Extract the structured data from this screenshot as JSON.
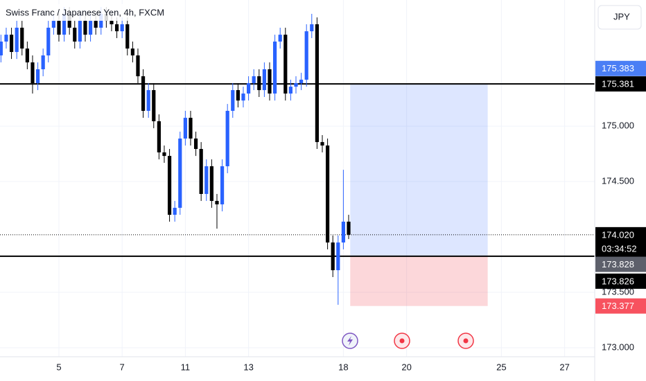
{
  "chart_data": {
    "type": "candlestick",
    "title": "Swiss Franc / Japanese Yen, 4h, FXCM",
    "currency": "JPY",
    "x": [
      1,
      2,
      3,
      4,
      5,
      6,
      7,
      8,
      9,
      10,
      11,
      12,
      13,
      14,
      15,
      16,
      17,
      18,
      19,
      20,
      21,
      22,
      23,
      24,
      25,
      26,
      27,
      28,
      29,
      30,
      31,
      32,
      33,
      34,
      35,
      36,
      37,
      38,
      39,
      40,
      41,
      42,
      43,
      44,
      45,
      46,
      47,
      48,
      49,
      50,
      51,
      52,
      53,
      54,
      55,
      56,
      57,
      58,
      59,
      60,
      61,
      62,
      63,
      64,
      65,
      66,
      67
    ],
    "open": [
      175.638,
      175.763,
      175.825,
      175.669,
      175.888,
      175.7,
      175.575,
      175.388,
      175.513,
      175.638,
      175.888,
      175.95,
      175.825,
      176.013,
      175.888,
      175.763,
      175.95,
      175.825,
      175.95,
      175.888,
      176.013,
      175.95,
      175.919,
      175.856,
      175.919,
      175.7,
      175.638,
      175.45,
      175.138,
      175.325,
      175.044,
      174.763,
      174.731,
      174.2,
      174.263,
      174.888,
      175.075,
      174.888,
      174.794,
      174.388,
      174.638,
      174.325,
      174.294,
      174.638,
      175.138,
      175.325,
      175.231,
      175.294,
      175.388,
      175.45,
      175.325,
      175.513,
      175.294,
      175.763,
      175.825,
      175.294,
      175.356,
      175.388,
      175.419,
      175.856,
      175.919,
      174.856,
      174.825,
      173.95,
      173.7,
      173.95,
      174.138
    ],
    "high": [
      175.825,
      175.888,
      175.888,
      175.95,
      175.95,
      175.763,
      175.638,
      175.575,
      175.7,
      175.95,
      176.013,
      176.013,
      176.075,
      176.075,
      175.95,
      176.013,
      176.013,
      176.013,
      176.013,
      176.075,
      176.075,
      176.013,
      175.981,
      175.981,
      175.981,
      175.763,
      175.7,
      175.513,
      175.388,
      175.388,
      175.106,
      174.825,
      174.794,
      174.325,
      174.95,
      175.138,
      175.138,
      174.95,
      174.856,
      174.7,
      174.7,
      174.388,
      174.7,
      175.2,
      175.388,
      175.388,
      175.356,
      175.45,
      175.513,
      175.513,
      175.575,
      175.575,
      175.825,
      175.888,
      175.888,
      175.419,
      175.45,
      175.481,
      175.919,
      176.013,
      175.981,
      174.919,
      174.888,
      174.013,
      174.013,
      174.606,
      174.2
    ],
    "low": [
      175.575,
      175.7,
      175.606,
      175.606,
      175.638,
      175.513,
      175.294,
      175.325,
      175.45,
      175.575,
      175.825,
      175.763,
      175.763,
      175.825,
      175.7,
      175.7,
      175.763,
      175.763,
      175.825,
      175.825,
      175.888,
      175.856,
      175.794,
      175.794,
      175.638,
      175.575,
      175.388,
      175.075,
      175.075,
      174.981,
      174.7,
      174.669,
      174.138,
      174.138,
      174.2,
      174.825,
      174.825,
      174.731,
      174.325,
      174.325,
      174.263,
      174.075,
      174.231,
      174.575,
      175.075,
      175.169,
      175.169,
      175.231,
      175.325,
      175.263,
      175.263,
      175.231,
      175.231,
      175.7,
      175.231,
      175.231,
      175.294,
      175.325,
      175.356,
      175.794,
      174.794,
      174.763,
      173.888,
      173.638,
      173.388,
      173.888,
      173.981
    ],
    "close": [
      175.763,
      175.825,
      175.669,
      175.888,
      175.7,
      175.575,
      175.388,
      175.513,
      175.638,
      175.888,
      175.95,
      175.825,
      176.013,
      175.888,
      175.763,
      175.95,
      175.825,
      175.95,
      175.888,
      176.013,
      175.95,
      175.919,
      175.856,
      175.919,
      175.7,
      175.638,
      175.45,
      175.138,
      175.325,
      175.044,
      174.763,
      174.731,
      174.2,
      174.263,
      174.888,
      175.075,
      174.888,
      174.794,
      174.388,
      174.638,
      174.325,
      174.294,
      174.638,
      175.138,
      175.325,
      175.231,
      175.294,
      175.388,
      175.45,
      175.325,
      175.513,
      175.294,
      175.763,
      175.825,
      175.294,
      175.356,
      175.388,
      175.419,
      175.856,
      175.919,
      174.856,
      174.825,
      173.95,
      173.7,
      173.95,
      174.138,
      174.02
    ],
    "up_color": "#2962ff",
    "down_color": "#000000",
    "xlim": [
      0.82,
      113.71
    ],
    "xticks": [
      {
        "value": 12,
        "label": "5"
      },
      {
        "value": 24,
        "label": "7"
      },
      {
        "value": 36,
        "label": "11"
      },
      {
        "value": 48,
        "label": "13"
      },
      {
        "value": 66,
        "label": "18"
      },
      {
        "value": 78,
        "label": "20"
      },
      {
        "value": 96,
        "label": "25"
      },
      {
        "value": 108,
        "label": "27"
      }
    ],
    "ylim": [
      172.919,
      176.138
    ],
    "yticks": [
      {
        "value": 175,
        "label": "175.000"
      },
      {
        "value": 174.5,
        "label": "174.500"
      },
      {
        "value": 173.5,
        "label": "173.500"
      },
      {
        "value": 173,
        "label": "173.000"
      }
    ],
    "grid": true,
    "horizontal_lines": [
      175.381,
      173.826
    ],
    "last_price": {
      "value": 174.02,
      "label": "174.020"
    },
    "countdown": "03:34:52",
    "position": {
      "x": [
        67.3,
        93.4
      ],
      "target": 175.383,
      "entry": 173.828,
      "stop": 173.377
    }
  }
}
